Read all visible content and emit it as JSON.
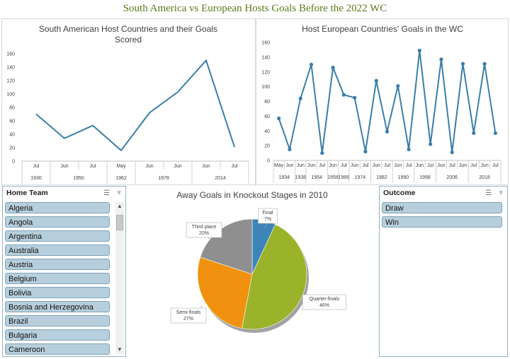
{
  "dashboard": {
    "title": "South America vs European Hosts Goals Before the 2022 WC"
  },
  "chart_data": [
    {
      "type": "line",
      "title_lines": [
        "South American Host Countries and their Goals",
        "Scored"
      ],
      "ylim": [
        0,
        160
      ],
      "yticks": [
        0,
        20,
        40,
        60,
        80,
        100,
        120,
        140,
        160
      ],
      "x_month": [
        "Jul",
        "Jun",
        "Jul",
        "May",
        "Jun",
        "Jun",
        "Jun",
        "Jul"
      ],
      "x_year_groups": [
        {
          "label": "1930",
          "span": 1
        },
        {
          "label": "1950",
          "span": 2
        },
        {
          "label": "1962",
          "span": 1
        },
        {
          "label": "1978",
          "span": 2
        },
        {
          "label": "2014",
          "span": 2
        }
      ],
      "values": [
        70,
        34,
        53,
        16,
        72,
        103,
        150,
        21
      ],
      "color": "#3b7ea8"
    },
    {
      "type": "line",
      "title": "Host European Countries' Goals in the WC",
      "ylim": [
        0,
        160
      ],
      "yticks": [
        0,
        20,
        40,
        60,
        80,
        100,
        120,
        140,
        160
      ],
      "x_month": [
        "May",
        "Jun",
        "Jun",
        "Jun",
        "Jul",
        "Jun",
        "Jul",
        "Jun",
        "Jul",
        "Jun",
        "Jul",
        "Jun",
        "Jul",
        "Jun",
        "Jul",
        "Jun",
        "Jul",
        "Jun",
        "Jul",
        "Jun",
        "Jul"
      ],
      "x_year_groups": [
        {
          "label": "1934",
          "span": 2
        },
        {
          "label": "1938",
          "span": 1
        },
        {
          "label": "1954",
          "span": 2
        },
        {
          "label": "1958",
          "span": 1
        },
        {
          "label": "1966",
          "span": 1
        },
        {
          "label": "1974",
          "span": 2
        },
        {
          "label": "1982",
          "span": 2
        },
        {
          "label": "1990",
          "span": 2
        },
        {
          "label": "1998",
          "span": 2
        },
        {
          "label": "2006",
          "span": 3
        },
        {
          "label": "2018",
          "span": 3
        }
      ],
      "values": [
        57,
        15,
        84,
        130,
        10,
        126,
        89,
        85,
        12,
        108,
        39,
        101,
        15,
        149,
        22,
        137,
        11,
        131,
        37,
        131,
        37
      ],
      "color": "#3b7ea8"
    },
    {
      "type": "pie",
      "title": "Away Goals in Knockout Stages in 2010",
      "slices": [
        {
          "label": "Final",
          "pct": 7,
          "color": "#3d85b8"
        },
        {
          "label": "Quarter-finals",
          "pct": 46,
          "color": "#9bb32a"
        },
        {
          "label": "Semi-finals",
          "pct": 27,
          "color": "#f0920f"
        },
        {
          "label": "Third place",
          "pct": 20,
          "color": "#8f8f8f"
        }
      ]
    }
  ],
  "slicer_home": {
    "title": "Home Team",
    "items": [
      "Algeria",
      "Angola",
      "Argentina",
      "Australia",
      "Austria",
      "Belgium",
      "Bolivia",
      "Bosnia and Herzegovina",
      "Brazil",
      "Bulgaria",
      "Cameroon"
    ]
  },
  "slicer_outcome": {
    "title": "Outcome",
    "items": [
      "Draw",
      "Win"
    ]
  },
  "icons": {
    "multiselect": "multi-select-icon",
    "clear_filter": "clear-filter-icon"
  }
}
